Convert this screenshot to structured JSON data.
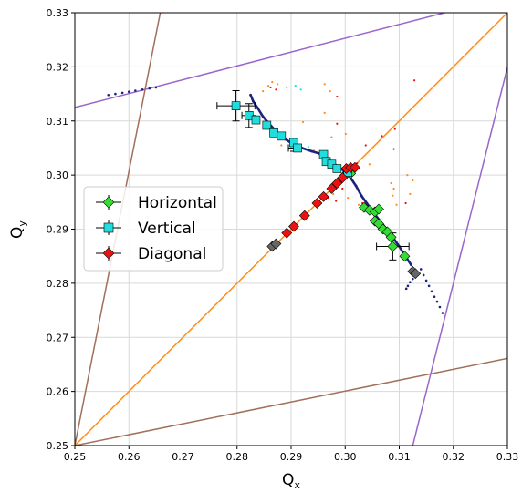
{
  "chart_data": {
    "type": "scatter",
    "title": "",
    "xlabel": "Q",
    "xlabel_sub": "x",
    "ylabel": "Q",
    "ylabel_sub": "y",
    "xlim": [
      0.25,
      0.33
    ],
    "ylim": [
      0.25,
      0.33
    ],
    "grid": true,
    "legend_position": "center-left",
    "x_ticks": [
      0.25,
      0.26,
      0.27,
      0.28,
      0.29,
      0.3,
      0.31,
      0.32,
      0.33
    ],
    "y_ticks": [
      0.25,
      0.26,
      0.27,
      0.28,
      0.29,
      0.3,
      0.31,
      0.32,
      0.33
    ],
    "x_tick_labels": [
      "0.25",
      "0.26",
      "0.27",
      "0.28",
      "0.29",
      "0.30",
      "0.31",
      "0.32",
      "0.33"
    ],
    "y_tick_labels": [
      "0.25",
      "0.26",
      "0.27",
      "0.28",
      "0.29",
      "0.30",
      "0.31",
      "0.32",
      "0.33"
    ],
    "resonance_lines": [
      {
        "color": "#ff8c1a",
        "points": [
          [
            0.25,
            0.25
          ],
          [
            0.33,
            0.33
          ]
        ]
      },
      {
        "color": "#9966cc",
        "points": [
          [
            0.25,
            0.3125
          ],
          [
            0.3184,
            0.33
          ]
        ]
      },
      {
        "color": "#9966cc",
        "points": [
          [
            0.3125,
            0.25
          ],
          [
            0.33,
            0.3199
          ]
        ]
      },
      {
        "color": "#a0705a",
        "points": [
          [
            0.25,
            0.25
          ],
          [
            0.2658,
            0.33
          ]
        ]
      },
      {
        "color": "#a0705a",
        "points": [
          [
            0.25,
            0.25
          ],
          [
            0.33,
            0.2661
          ]
        ]
      }
    ],
    "series": [
      {
        "name": "Horizontal",
        "color": "#33dd33",
        "marker": "diamond",
        "points": [
          [
            0.3,
            0.3
          ],
          [
            0.3005,
            0.3006
          ],
          [
            0.301,
            0.3003
          ],
          [
            0.3035,
            0.294
          ],
          [
            0.3045,
            0.2935
          ],
          [
            0.3055,
            0.2932
          ],
          [
            0.3062,
            0.2937
          ],
          [
            0.3055,
            0.2915
          ],
          [
            0.3062,
            0.291
          ],
          [
            0.307,
            0.29
          ],
          [
            0.3078,
            0.2895
          ],
          [
            0.3085,
            0.2885
          ],
          [
            0.3088,
            0.2868
          ],
          [
            0.311,
            0.285
          ]
        ],
        "error_bars": [
          {
            "x": 0.3088,
            "y": 0.2868,
            "xerr": 0.003,
            "yerr": 0.0025
          }
        ]
      },
      {
        "name": "Vertical",
        "color": "#22dddd",
        "marker": "square",
        "points": [
          [
            0.2798,
            0.3128
          ],
          [
            0.2822,
            0.311
          ],
          [
            0.2835,
            0.3102
          ],
          [
            0.2855,
            0.3092
          ],
          [
            0.2868,
            0.3078
          ],
          [
            0.2882,
            0.3072
          ],
          [
            0.2905,
            0.306
          ],
          [
            0.2912,
            0.305
          ],
          [
            0.296,
            0.3038
          ],
          [
            0.2965,
            0.3025
          ],
          [
            0.2975,
            0.302
          ],
          [
            0.2985,
            0.3012
          ],
          [
            0.3005,
            0.3005
          ]
        ],
        "error_bars": [
          {
            "x": 0.2798,
            "y": 0.3128,
            "xerr": 0.0035,
            "yerr": 0.0028
          },
          {
            "x": 0.2822,
            "y": 0.311,
            "xerr": 0.0013,
            "yerr": 0.0022
          },
          {
            "x": 0.2905,
            "y": 0.305,
            "xerr": 0.001,
            "yerr": 0.0006
          }
        ]
      },
      {
        "name": "Diagonal",
        "color": "#ee1111",
        "marker": "diamond",
        "points": [
          [
            0.2892,
            0.2893
          ],
          [
            0.2905,
            0.2905
          ],
          [
            0.2925,
            0.2925
          ],
          [
            0.2948,
            0.2948
          ],
          [
            0.296,
            0.296
          ],
          [
            0.2975,
            0.2975
          ],
          [
            0.2985,
            0.2985
          ],
          [
            0.2995,
            0.2995
          ],
          [
            0.3002,
            0.3012
          ],
          [
            0.301,
            0.3014
          ],
          [
            0.3018,
            0.3014
          ]
        ]
      },
      {
        "name": "",
        "color": "#666666",
        "marker": "diamond",
        "points": [
          [
            0.2865,
            0.2868
          ],
          [
            0.2872,
            0.2873
          ],
          [
            0.3125,
            0.2822
          ],
          [
            0.313,
            0.2818
          ]
        ]
      }
    ],
    "tracks": [
      {
        "color": "#1a237e",
        "style": "line",
        "points": [
          [
            0.2825,
            0.3148
          ],
          [
            0.283,
            0.3136
          ],
          [
            0.2838,
            0.3124
          ],
          [
            0.2848,
            0.3108
          ],
          [
            0.286,
            0.3094
          ],
          [
            0.2875,
            0.3078
          ],
          [
            0.289,
            0.3066
          ],
          [
            0.2905,
            0.3056
          ],
          [
            0.292,
            0.305
          ],
          [
            0.2938,
            0.3044
          ],
          [
            0.2952,
            0.304
          ],
          [
            0.2964,
            0.3032
          ],
          [
            0.2978,
            0.3022
          ],
          [
            0.2992,
            0.3012
          ],
          [
            0.3005,
            0.3002
          ],
          [
            0.302,
            0.298
          ],
          [
            0.303,
            0.2962
          ],
          [
            0.304,
            0.2948
          ],
          [
            0.305,
            0.2934
          ],
          [
            0.3062,
            0.2918
          ],
          [
            0.3075,
            0.2902
          ],
          [
            0.3088,
            0.2885
          ],
          [
            0.31,
            0.2868
          ],
          [
            0.311,
            0.2852
          ],
          [
            0.3122,
            0.2834
          ]
        ]
      },
      {
        "color": "#1a237e",
        "style": "dots",
        "points": [
          [
            0.3113,
            0.279
          ],
          [
            0.3116,
            0.2795
          ],
          [
            0.312,
            0.2802
          ],
          [
            0.3125,
            0.2808
          ],
          [
            0.3132,
            0.2816
          ],
          [
            0.314,
            0.2826
          ],
          [
            0.3145,
            0.2815
          ],
          [
            0.315,
            0.2805
          ],
          [
            0.3155,
            0.2795
          ],
          [
            0.316,
            0.2785
          ],
          [
            0.3165,
            0.2775
          ],
          [
            0.317,
            0.2766
          ],
          [
            0.3175,
            0.2756
          ],
          [
            0.318,
            0.2745
          ]
        ]
      },
      {
        "color": "#1a237e",
        "style": "dots",
        "points": [
          [
            0.2562,
            0.3148
          ],
          [
            0.2575,
            0.315
          ],
          [
            0.2588,
            0.3152
          ],
          [
            0.26,
            0.3154
          ],
          [
            0.2612,
            0.3156
          ],
          [
            0.2625,
            0.3158
          ],
          [
            0.2638,
            0.316
          ],
          [
            0.265,
            0.3162
          ]
        ]
      }
    ],
    "scatter_noise": [
      {
        "color": "#ff8c1a",
        "points": [
          [
            0.2848,
            0.3155
          ],
          [
            0.2858,
            0.3165
          ],
          [
            0.2865,
            0.3172
          ],
          [
            0.2875,
            0.3168
          ],
          [
            0.2892,
            0.3162
          ],
          [
            0.2962,
            0.3168
          ],
          [
            0.2972,
            0.3155
          ],
          [
            0.2962,
            0.3115
          ],
          [
            0.2922,
            0.3098
          ],
          [
            0.2942,
            0.3045
          ],
          [
            0.2955,
            0.3035
          ],
          [
            0.2968,
            0.3025
          ],
          [
            0.2982,
            0.3015
          ],
          [
            0.3045,
            0.302
          ],
          [
            0.3085,
            0.2985
          ],
          [
            0.309,
            0.2975
          ],
          [
            0.3088,
            0.2962
          ],
          [
            0.3115,
            0.3
          ],
          [
            0.3125,
            0.299
          ],
          [
            0.312,
            0.2965
          ],
          [
            0.3095,
            0.2945
          ],
          [
            0.2978,
            0.2965
          ],
          [
            0.3005,
            0.2958
          ],
          [
            0.3025,
            0.2945
          ],
          [
            0.2882,
            0.3055
          ],
          [
            0.2918,
            0.3048
          ],
          [
            0.2975,
            0.307
          ],
          [
            0.3001,
            0.3076
          ]
        ]
      },
      {
        "color": "#ee1111",
        "points": [
          [
            0.2862,
            0.3162
          ],
          [
            0.2872,
            0.3158
          ],
          [
            0.2985,
            0.3145
          ],
          [
            0.2985,
            0.3095
          ],
          [
            0.3128,
            0.3175
          ],
          [
            0.3092,
            0.3085
          ],
          [
            0.309,
            0.3048
          ],
          [
            0.3022,
            0.3022
          ],
          [
            0.2995,
            0.2975
          ],
          [
            0.2983,
            0.2952
          ],
          [
            0.2968,
            0.2958
          ],
          [
            0.2952,
            0.2948
          ],
          [
            0.3032,
            0.2948
          ],
          [
            0.3038,
            0.3055
          ],
          [
            0.3068,
            0.3072
          ],
          [
            0.3112,
            0.2948
          ]
        ]
      },
      {
        "color": "#22dddd",
        "points": [
          [
            0.2908,
            0.3165
          ],
          [
            0.2918,
            0.3158
          ],
          [
            0.2932,
            0.3052
          ],
          [
            0.3012,
            0.3001
          ]
        ]
      }
    ]
  },
  "legend": {
    "items": [
      {
        "label": "Horizontal",
        "color": "#33dd33",
        "marker": "diamond"
      },
      {
        "label": "Vertical",
        "color": "#22dddd",
        "marker": "square"
      },
      {
        "label": "Diagonal",
        "color": "#ee1111",
        "marker": "diamond"
      }
    ]
  }
}
